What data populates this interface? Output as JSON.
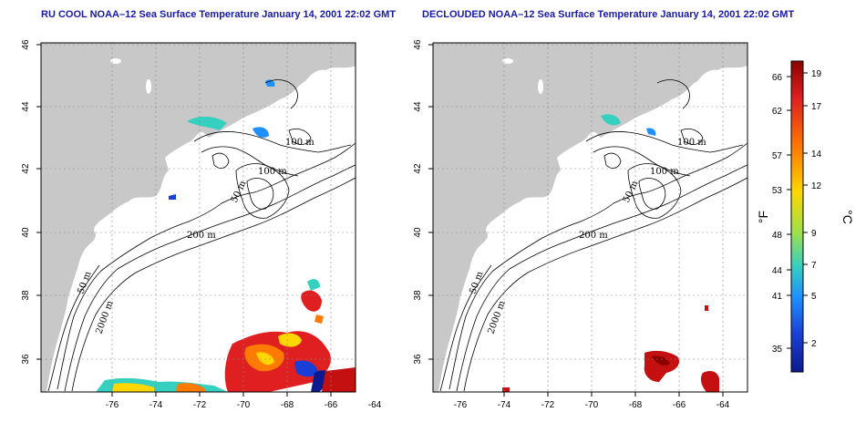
{
  "left_panel": {
    "title": "RU COOL NOAA–12 Sea Surface Temperature January 14, 2001 22:02 GMT"
  },
  "right_panel": {
    "title": "DECLOUDED NOAA–12 Sea Surface Temperature January 14, 2001 22:02 GMT"
  },
  "map": {
    "lon_ticks": [
      "-76",
      "-74",
      "-72",
      "-70",
      "-68",
      "-66",
      "-64"
    ],
    "lat_ticks": [
      "46",
      "44",
      "42",
      "40",
      "38",
      "36"
    ],
    "contour_labels": {
      "c100a": "100 m",
      "c100b": "100 m",
      "c50a": "50 m",
      "c200": "200 m",
      "c50b": "50 m",
      "c2000": "2000 m"
    },
    "colors": {
      "land": "#c8c8c8",
      "ocean": "#ffffff",
      "grid": "#888888"
    }
  },
  "colorbar": {
    "f_ticks": [
      "66",
      "62",
      "57",
      "53",
      "48",
      "44",
      "41",
      "35"
    ],
    "c_ticks": [
      "19",
      "17",
      "14",
      "12",
      "9",
      "7",
      "5",
      "2"
    ],
    "f_unit": "°F",
    "c_unit": "°C",
    "gradient": [
      "#8b0000",
      "#e02020",
      "#ff7a00",
      "#ffd700",
      "#9ee04a",
      "#35d0c0",
      "#1e90ff",
      "#1a3fd6",
      "#0b1a8c"
    ]
  }
}
